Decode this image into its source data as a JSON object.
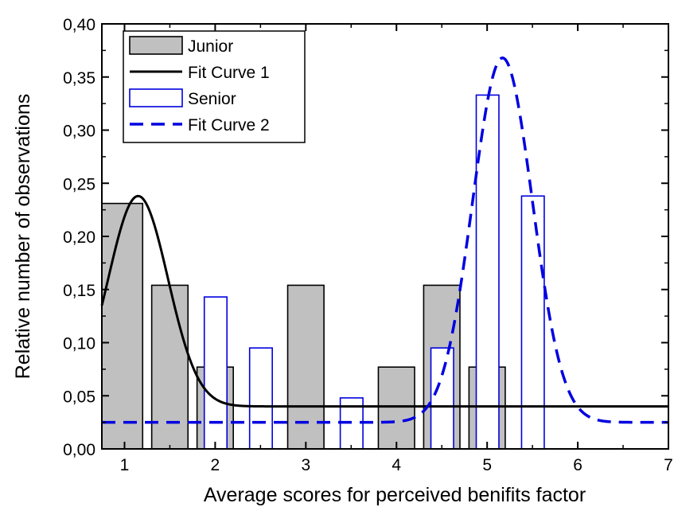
{
  "chart_data": {
    "type": "bar",
    "xlabel": "Average scores for perceived benifits factor",
    "ylabel": "Relative number of observations",
    "xlim": [
      0.75,
      7
    ],
    "ylim": [
      0,
      0.4
    ],
    "x_ticks": [
      1,
      2,
      3,
      4,
      5,
      6,
      7
    ],
    "x_tick_labels": [
      "1",
      "2",
      "3",
      "4",
      "5",
      "6",
      "7"
    ],
    "y_ticks": [
      0,
      0.05,
      0.1,
      0.15,
      0.2,
      0.25,
      0.3,
      0.35,
      0.4
    ],
    "y_tick_labels": [
      "0,00",
      "0,05",
      "0,10",
      "0,15",
      "0,20",
      "0,25",
      "0,30",
      "0,35",
      "0,40"
    ],
    "grid": false,
    "legend_position": "top-left",
    "series": [
      {
        "name": "Junior",
        "kind": "bar",
        "color": "#c0c0c0",
        "edge_color": "#000000",
        "bars": [
          {
            "x_start": 0.75,
            "x_end": 1.2,
            "value": 0.231
          },
          {
            "x_start": 1.3,
            "x_end": 1.7,
            "value": 0.154
          },
          {
            "x_start": 1.8,
            "x_end": 2.2,
            "value": 0.077
          },
          {
            "x_start": 2.8,
            "x_end": 3.2,
            "value": 0.154
          },
          {
            "x_start": 3.8,
            "x_end": 4.2,
            "value": 0.077
          },
          {
            "x_start": 4.3,
            "x_end": 4.7,
            "value": 0.154
          },
          {
            "x_start": 4.8,
            "x_end": 5.2,
            "value": 0.077
          }
        ]
      },
      {
        "name": "Senior",
        "kind": "bar",
        "color": "#ffffff",
        "edge_color": "#0000e0",
        "bars": [
          {
            "x_start": 1.88,
            "x_end": 2.13,
            "value": 0.143
          },
          {
            "x_start": 2.38,
            "x_end": 2.63,
            "value": 0.095
          },
          {
            "x_start": 3.38,
            "x_end": 3.63,
            "value": 0.048
          },
          {
            "x_start": 4.38,
            "x_end": 4.63,
            "value": 0.095
          },
          {
            "x_start": 4.88,
            "x_end": 5.13,
            "value": 0.333
          },
          {
            "x_start": 5.38,
            "x_end": 5.63,
            "value": 0.238
          }
        ]
      },
      {
        "name": "Fit Curve 1",
        "kind": "line",
        "color": "#000000",
        "dash": "solid",
        "gaussian": {
          "baseline": 0.04,
          "amplitude": 0.198,
          "center": 1.15,
          "sigma": 0.33
        },
        "x": [
          0.75,
          0.85,
          0.95,
          1.05,
          1.15,
          1.25,
          1.35,
          1.45,
          1.55,
          1.65,
          1.75,
          1.85,
          1.95,
          2.05,
          2.15,
          2.25,
          2.35,
          2.5,
          3.0,
          4.0,
          5.0,
          6.0,
          7.0
        ],
        "y": [
          0.15,
          0.18,
          0.208,
          0.23,
          0.238,
          0.23,
          0.208,
          0.18,
          0.15,
          0.121,
          0.096,
          0.076,
          0.062,
          0.052,
          0.046,
          0.043,
          0.041,
          0.04,
          0.04,
          0.04,
          0.04,
          0.04,
          0.04
        ]
      },
      {
        "name": "Fit Curve 2",
        "kind": "line",
        "color": "#0000e0",
        "dash": "dashed",
        "gaussian": {
          "baseline": 0.025,
          "amplitude": 0.343,
          "center": 5.17,
          "sigma": 0.33
        },
        "x": [
          0.75,
          1.0,
          2.0,
          3.0,
          4.0,
          4.2,
          4.4,
          4.6,
          4.8,
          4.9,
          5.0,
          5.1,
          5.17,
          5.25,
          5.35,
          5.5,
          5.6,
          5.8,
          6.0,
          6.2,
          6.4,
          6.6,
          7.0
        ],
        "y": [
          0.025,
          0.025,
          0.025,
          0.025,
          0.025,
          0.028,
          0.046,
          0.097,
          0.2,
          0.263,
          0.318,
          0.356,
          0.368,
          0.357,
          0.326,
          0.259,
          0.207,
          0.114,
          0.058,
          0.035,
          0.028,
          0.025,
          0.025
        ]
      }
    ]
  }
}
